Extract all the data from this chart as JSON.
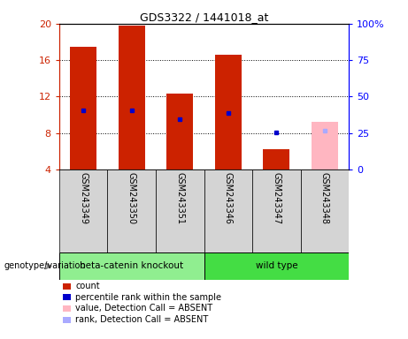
{
  "title": "GDS3322 / 1441018_at",
  "samples": [
    "GSM243349",
    "GSM243350",
    "GSM243351",
    "GSM243346",
    "GSM243347",
    "GSM243348"
  ],
  "counts": [
    17.5,
    19.8,
    12.3,
    16.6,
    6.2,
    null
  ],
  "percentile_ranks": [
    10.5,
    10.5,
    9.5,
    10.2,
    8.1,
    null
  ],
  "absent_values": [
    null,
    null,
    null,
    null,
    null,
    9.2
  ],
  "absent_ranks": [
    null,
    null,
    null,
    null,
    null,
    8.3
  ],
  "absent_bar_color": "#FFB6C1",
  "absent_rank_color": "#AAAAFF",
  "bar_color": "#CC2200",
  "rank_color": "#0000CC",
  "ylim_left": [
    4,
    20
  ],
  "ylim_right": [
    0,
    100
  ],
  "yticks_left": [
    4,
    8,
    12,
    16,
    20
  ],
  "yticks_right": [
    0,
    25,
    50,
    75,
    100
  ],
  "ytick_labels_right": [
    "0",
    "25",
    "50",
    "75",
    "100%"
  ],
  "bar_width": 0.55,
  "group1_color": "#90EE90",
  "group2_color": "#44DD44",
  "legend_items": [
    {
      "label": "count",
      "color": "#CC2200"
    },
    {
      "label": "percentile rank within the sample",
      "color": "#0000CC"
    },
    {
      "label": "value, Detection Call = ABSENT",
      "color": "#FFB6C1"
    },
    {
      "label": "rank, Detection Call = ABSENT",
      "color": "#AAAAFF"
    }
  ]
}
